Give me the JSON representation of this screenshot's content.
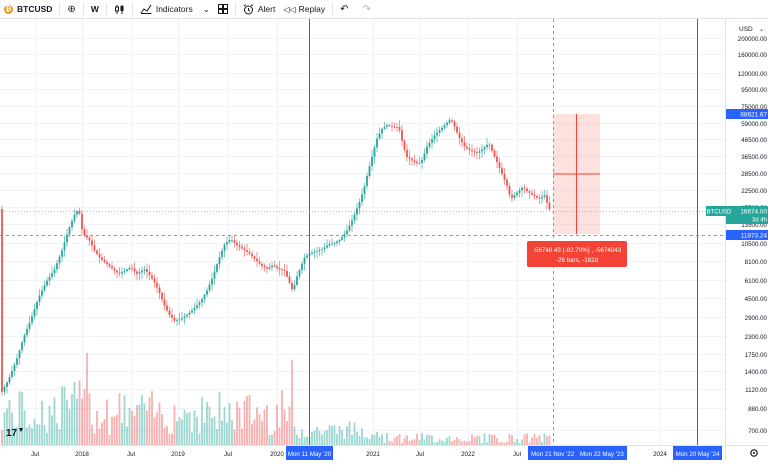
{
  "toolbar": {
    "symbol": "BTCUSD",
    "symbol_glyph": "₿",
    "add_symbol_icon": "plus-circle-icon",
    "interval": "W",
    "chart_type_icon": "candles-icon",
    "indicators_label": "Indicators",
    "layout_icon": "grid-icon",
    "alert_label": "Alert",
    "replay_label": "Replay",
    "undo_icon": "undo-icon",
    "redo_icon": "redo-icon"
  },
  "price_axis": {
    "currency": "USD",
    "ticks": [
      "200000.00",
      "160000.00",
      "120000.00",
      "95000.00",
      "75000.00",
      "59000.00",
      "46500.00",
      "36500.00",
      "28500.00",
      "22500.00",
      "17500.00",
      "13500.00",
      "10500.00",
      "8100.00",
      "6100.00",
      "4500.00",
      "2900.00",
      "2300.00",
      "1750.00",
      "1400.00",
      "1120.00",
      "880.00",
      "700.00"
    ],
    "label_high": "68621.67",
    "label_last": "16674.00",
    "label_last_countdown": "3d 4h",
    "label_low": "11873.24",
    "label_symbol": "BTCUSD"
  },
  "time_axis": {
    "ticks": [
      "Jul",
      "2018",
      "Jul",
      "2019",
      "Jul",
      "2020",
      "2021",
      "Jul",
      "2022",
      "Jul",
      "2024"
    ],
    "marker_left": "Mon 11 May '20",
    "range_start": "Mon 21 Nov '22",
    "range_end": "Mon 22 May '23",
    "marker_right": "Mon 20 May '24"
  },
  "measure": {
    "line1": "-56748.43 (-82.70%) , -5674843",
    "line2": "-26 bars, -182d"
  },
  "branding": {
    "logo": "tv-logo"
  },
  "colors": {
    "up": "#26a69a",
    "down": "#ef5350",
    "blue_line": "#2962ff",
    "measure_box": "#f44336"
  },
  "chart_data": {
    "type": "candlestick",
    "symbol": "BTCUSD",
    "interval": "W",
    "scale": "log",
    "x_range": [
      "2017-04",
      "2024-10"
    ],
    "y_range": [
      600,
      230000
    ],
    "key_levels": {
      "high": 68621.67,
      "last": 16674.0,
      "low": 11873.24
    },
    "markers": [
      "Mon 11 May '20",
      "Mon 20 May '24"
    ]
  }
}
